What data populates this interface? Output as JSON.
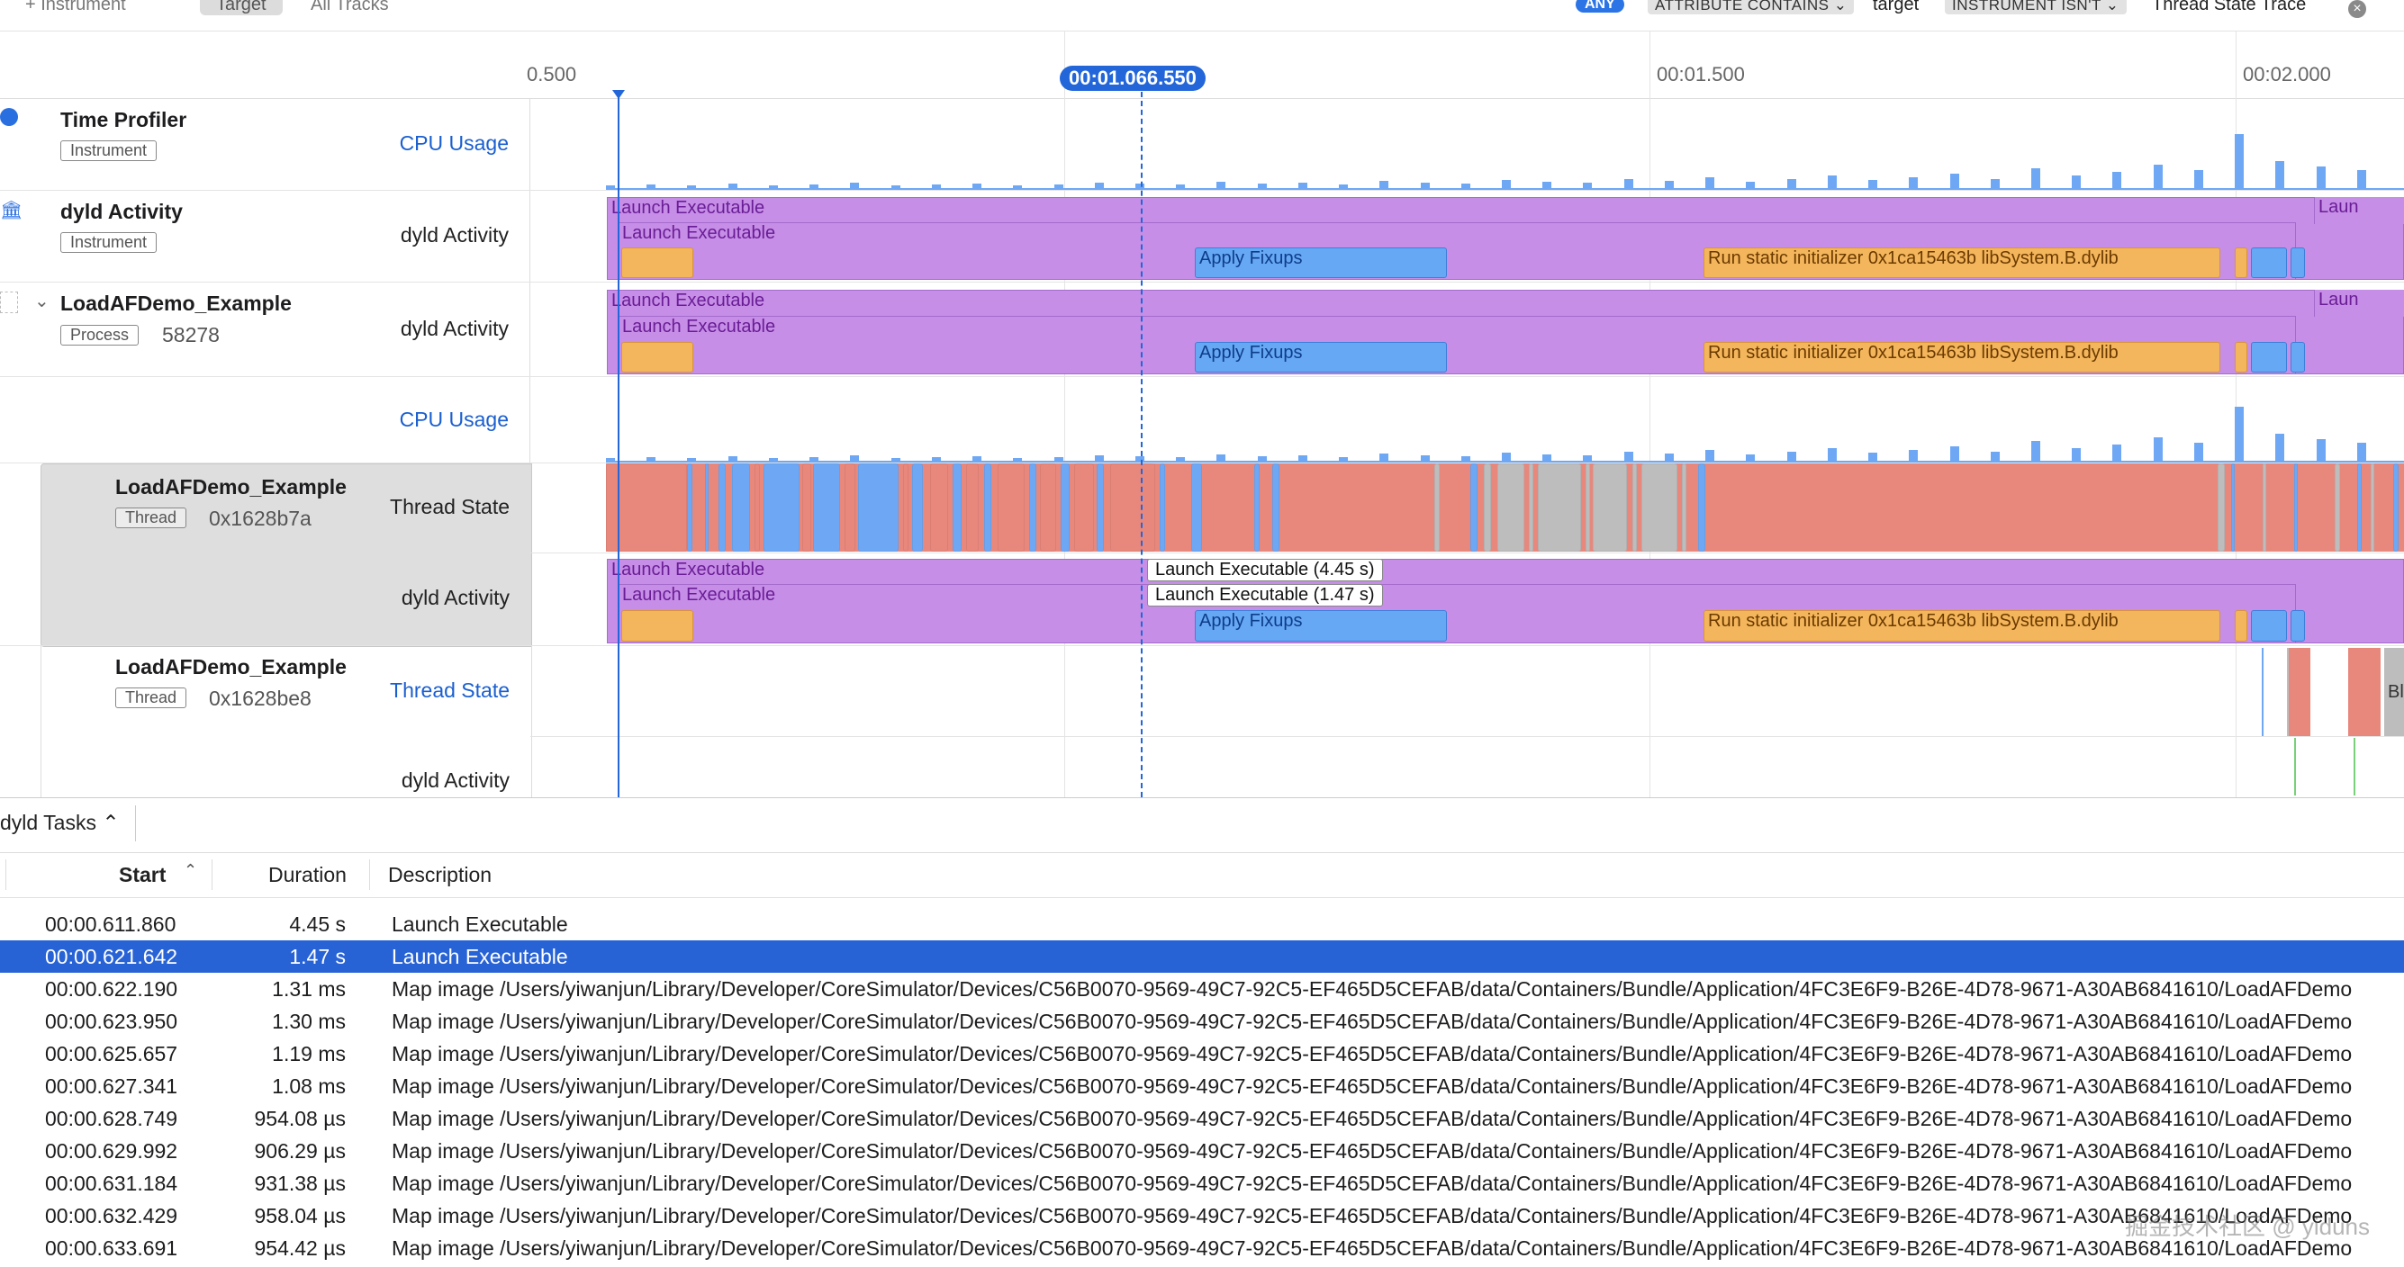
{
  "toolbar": {
    "add_instrument": "+ Instrument",
    "scope_target": "Target",
    "scope_all_tracks": "All Tracks",
    "filter_any": "ANY",
    "filter_attr": "ATTRIBUTE CONTAINS",
    "filter_attr_value": "target",
    "filter_instr": "INSTRUMENT ISN'T",
    "filter_instr_value": "Thread State Trace"
  },
  "ruler": {
    "ticks": [
      "0.500",
      "00:01.500",
      "00:02.000"
    ],
    "cursor_time": "00:01.066.550"
  },
  "tracks": {
    "time_profiler": {
      "title": "Time Profiler",
      "tag": "Instrument",
      "kind": "CPU Usage"
    },
    "dyld_activity": {
      "title": "dyld Activity",
      "tag": "Instrument",
      "kind": "dyld Activity"
    },
    "process": {
      "title": "LoadAFDemo_Example",
      "tag": "Process",
      "pid": "58278",
      "kind": "dyld Activity",
      "kind2": "CPU Usage"
    },
    "thread1": {
      "title": "LoadAFDemo_Example",
      "tag": "Thread",
      "tid": "0x1628b7a",
      "kind": "Thread State",
      "kind2": "dyld Activity"
    },
    "thread2": {
      "title": "LoadAFDemo_Example",
      "tag": "Thread",
      "tid": "0x1628be8",
      "kind": "Thread State",
      "kind2": "dyld Activity"
    }
  },
  "bars": {
    "launch_exec": "Launch Executable",
    "apply_fixups": "Apply Fixups",
    "run_static": "Run static initializer 0x1ca15463b  libSystem.B.dylib",
    "launch_cut": "Laun",
    "bl_cut": "Bl"
  },
  "tooltips": {
    "t1": "Launch Executable (4.45 s)",
    "t2": "Launch Executable (1.47 s)"
  },
  "tasks": {
    "selector": "dyld Tasks ⌃",
    "columns": {
      "start": "Start",
      "duration": "Duration",
      "description": "Description"
    },
    "rows": [
      {
        "start": "00:00.611.860",
        "duration": "4.45 s",
        "description": "Launch Executable"
      },
      {
        "start": "00:00.621.642",
        "duration": "1.47 s",
        "description": "Launch Executable"
      },
      {
        "start": "00:00.622.190",
        "duration": "1.31 ms",
        "description": "Map image /Users/yiwanjun/Library/Developer/CoreSimulator/Devices/C56B0070-9569-49C7-92C5-EF465D5CEFAB/data/Containers/Bundle/Application/4FC3E6F9-B26E-4D78-9671-A30AB6841610/LoadAFDemo"
      },
      {
        "start": "00:00.623.950",
        "duration": "1.30 ms",
        "description": "Map image /Users/yiwanjun/Library/Developer/CoreSimulator/Devices/C56B0070-9569-49C7-92C5-EF465D5CEFAB/data/Containers/Bundle/Application/4FC3E6F9-B26E-4D78-9671-A30AB6841610/LoadAFDemo"
      },
      {
        "start": "00:00.625.657",
        "duration": "1.19 ms",
        "description": "Map image /Users/yiwanjun/Library/Developer/CoreSimulator/Devices/C56B0070-9569-49C7-92C5-EF465D5CEFAB/data/Containers/Bundle/Application/4FC3E6F9-B26E-4D78-9671-A30AB6841610/LoadAFDemo"
      },
      {
        "start": "00:00.627.341",
        "duration": "1.08 ms",
        "description": "Map image /Users/yiwanjun/Library/Developer/CoreSimulator/Devices/C56B0070-9569-49C7-92C5-EF465D5CEFAB/data/Containers/Bundle/Application/4FC3E6F9-B26E-4D78-9671-A30AB6841610/LoadAFDemo"
      },
      {
        "start": "00:00.628.749",
        "duration": "954.08 µs",
        "description": "Map image /Users/yiwanjun/Library/Developer/CoreSimulator/Devices/C56B0070-9569-49C7-92C5-EF465D5CEFAB/data/Containers/Bundle/Application/4FC3E6F9-B26E-4D78-9671-A30AB6841610/LoadAFDemo"
      },
      {
        "start": "00:00.629.992",
        "duration": "906.29 µs",
        "description": "Map image /Users/yiwanjun/Library/Developer/CoreSimulator/Devices/C56B0070-9569-49C7-92C5-EF465D5CEFAB/data/Containers/Bundle/Application/4FC3E6F9-B26E-4D78-9671-A30AB6841610/LoadAFDemo"
      },
      {
        "start": "00:00.631.184",
        "duration": "931.38 µs",
        "description": "Map image /Users/yiwanjun/Library/Developer/CoreSimulator/Devices/C56B0070-9569-49C7-92C5-EF465D5CEFAB/data/Containers/Bundle/Application/4FC3E6F9-B26E-4D78-9671-A30AB6841610/LoadAFDemo"
      },
      {
        "start": "00:00.632.429",
        "duration": "958.04 µs",
        "description": "Map image /Users/yiwanjun/Library/Developer/CoreSimulator/Devices/C56B0070-9569-49C7-92C5-EF465D5CEFAB/data/Containers/Bundle/Application/4FC3E6F9-B26E-4D78-9671-A30AB6841610/LoadAFDemo"
      },
      {
        "start": "00:00.633.691",
        "duration": "954.42 µs",
        "description": "Map image /Users/yiwanjun/Library/Developer/CoreSimulator/Devices/C56B0070-9569-49C7-92C5-EF465D5CEFAB/data/Containers/Bundle/Application/4FC3E6F9-B26E-4D78-9671-A30AB6841610/LoadAFDemo"
      }
    ]
  },
  "watermark": "掘金技术社区 @ yiduns",
  "colors": {
    "accent": "#2863d6",
    "dyld_purple": "#c68ee6",
    "fixup_blue": "#67a8f4",
    "initializer_orange": "#f4b65c",
    "thread_red": "#e8877c",
    "thread_blue": "#6ea8f5",
    "thread_gray": "#bdbdbd"
  }
}
